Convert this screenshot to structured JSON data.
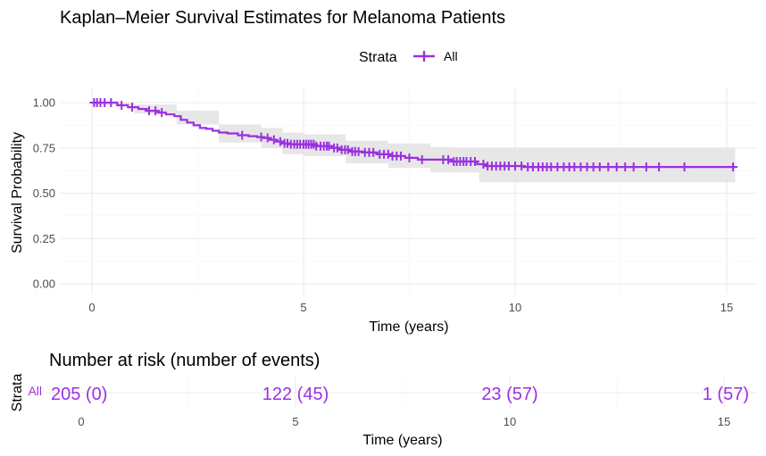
{
  "chart_data": [
    {
      "type": "line",
      "subtype": "kaplan-meier",
      "title": "Kaplan–Meier Survival Estimates for Melanoma Patients",
      "xlabel": "Time (years)",
      "ylabel": "Survival Probability",
      "xlim": [
        0,
        15.2
      ],
      "ylim": [
        0,
        1
      ],
      "x_ticks": [
        "0",
        "5",
        "10",
        "15"
      ],
      "y_ticks": [
        "0.00",
        "0.25",
        "0.50",
        "0.75",
        "1.00"
      ],
      "grid": true,
      "legend": {
        "title": "Strata",
        "position": "top",
        "entries": [
          "All"
        ]
      },
      "series": [
        {
          "name": "All",
          "color": "#9b30e0",
          "confidence_band_color": "#e3e3e3",
          "steps": [
            [
              0,
              1.0
            ],
            [
              0.6,
              0.985
            ],
            [
              0.85,
              0.975
            ],
            [
              1.1,
              0.965
            ],
            [
              1.3,
              0.955
            ],
            [
              1.55,
              0.945
            ],
            [
              1.75,
              0.935
            ],
            [
              1.95,
              0.925
            ],
            [
              2.1,
              0.905
            ],
            [
              2.25,
              0.89
            ],
            [
              2.4,
              0.875
            ],
            [
              2.55,
              0.86
            ],
            [
              2.7,
              0.855
            ],
            [
              2.85,
              0.845
            ],
            [
              3.0,
              0.835
            ],
            [
              3.2,
              0.83
            ],
            [
              3.45,
              0.82
            ],
            [
              3.7,
              0.815
            ],
            [
              3.9,
              0.81
            ],
            [
              4.05,
              0.805
            ],
            [
              4.2,
              0.795
            ],
            [
              4.35,
              0.785
            ],
            [
              4.5,
              0.775
            ],
            [
              4.7,
              0.77
            ],
            [
              5.3,
              0.76
            ],
            [
              5.65,
              0.75
            ],
            [
              5.85,
              0.74
            ],
            [
              6.1,
              0.73
            ],
            [
              6.4,
              0.725
            ],
            [
              6.75,
              0.715
            ],
            [
              7.1,
              0.705
            ],
            [
              7.4,
              0.695
            ],
            [
              7.7,
              0.685
            ],
            [
              8.5,
              0.675
            ],
            [
              9.1,
              0.66
            ],
            [
              9.3,
              0.65
            ],
            [
              10.2,
              0.645
            ],
            [
              15.2,
              0.645
            ]
          ],
          "ci_lower": [
            [
              0,
              0.985
            ],
            [
              1.0,
              0.94
            ],
            [
              2.0,
              0.88
            ],
            [
              3.0,
              0.78
            ],
            [
              4.0,
              0.75
            ],
            [
              4.5,
              0.715
            ],
            [
              5.0,
              0.705
            ],
            [
              6.0,
              0.665
            ],
            [
              7.0,
              0.64
            ],
            [
              8.0,
              0.615
            ],
            [
              9.15,
              0.56
            ],
            [
              15.2,
              0.56
            ]
          ],
          "ci_upper": [
            [
              0,
              1.0
            ],
            [
              0.5,
              1.0
            ],
            [
              1.0,
              0.99
            ],
            [
              2.0,
              0.955
            ],
            [
              3.0,
              0.88
            ],
            [
              4.0,
              0.86
            ],
            [
              4.5,
              0.835
            ],
            [
              5.0,
              0.825
            ],
            [
              6.0,
              0.79
            ],
            [
              7.0,
              0.775
            ],
            [
              8.0,
              0.755
            ],
            [
              8.45,
              0.75
            ],
            [
              15.2,
              0.75
            ]
          ],
          "censored_times": [
            0.05,
            0.12,
            0.2,
            0.3,
            0.45,
            0.7,
            0.95,
            1.35,
            1.5,
            1.65,
            3.55,
            4.0,
            4.15,
            4.3,
            4.45,
            4.55,
            4.62,
            4.7,
            4.78,
            4.85,
            4.92,
            5.0,
            5.06,
            5.12,
            5.18,
            5.24,
            5.3,
            5.4,
            5.48,
            5.55,
            5.6,
            5.72,
            5.8,
            5.9,
            5.98,
            6.05,
            6.15,
            6.22,
            6.3,
            6.45,
            6.55,
            6.65,
            6.8,
            6.9,
            7.0,
            7.1,
            7.2,
            7.3,
            7.5,
            7.8,
            8.3,
            8.42,
            8.55,
            8.62,
            8.7,
            8.78,
            8.85,
            8.95,
            9.05,
            9.25,
            9.35,
            9.45,
            9.55,
            9.65,
            9.75,
            9.85,
            10.0,
            10.15,
            10.3,
            10.42,
            10.55,
            10.65,
            10.75,
            10.85,
            11.0,
            11.15,
            11.28,
            11.4,
            11.55,
            11.7,
            11.85,
            12.0,
            12.2,
            12.4,
            12.6,
            12.8,
            13.1,
            13.4,
            14.0,
            15.15
          ]
        }
      ]
    },
    {
      "type": "table",
      "title": "Number at risk (number of events)",
      "xlabel": "Time (years)",
      "ylabel": "Strata",
      "strata": [
        "All"
      ],
      "x_ticks": [
        "0",
        "5",
        "10",
        "15"
      ],
      "xlim": [
        0,
        15.2
      ],
      "times": [
        0,
        5,
        10,
        15
      ],
      "values": [
        "205 (0)",
        "122 (45)",
        "23 (57)",
        "1 (57)"
      ]
    }
  ]
}
